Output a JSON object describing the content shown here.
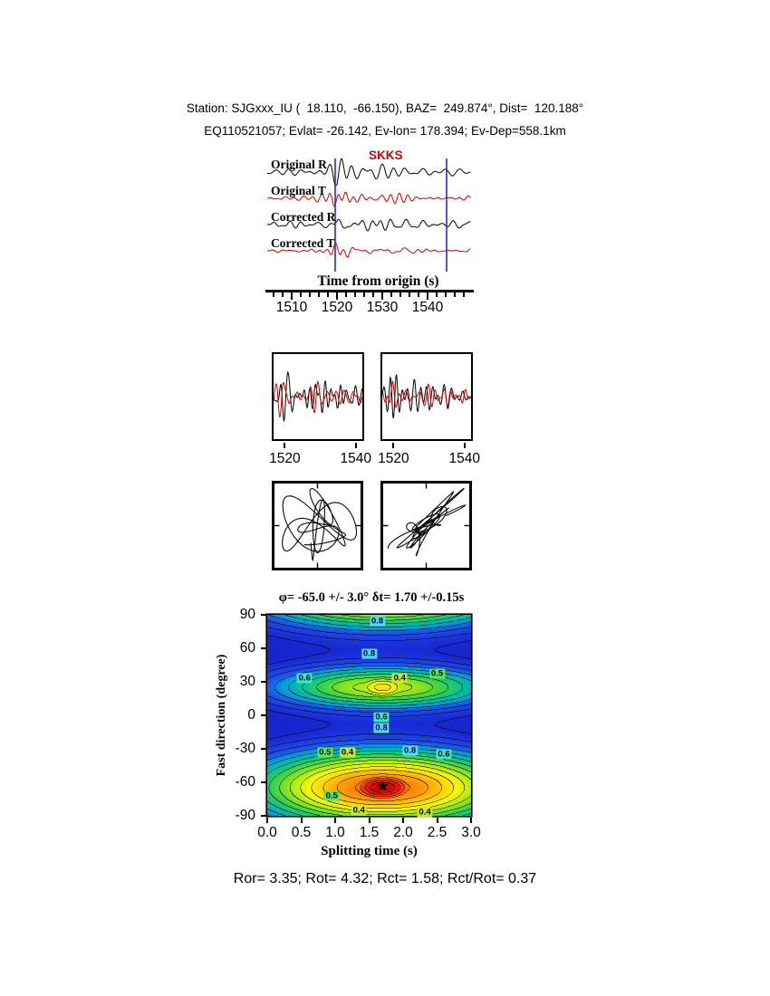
{
  "header": {
    "line1": "Station: SJGxxx_IU (  18.110,  -66.150), BAZ=  249.874°, Dist=  120.188°",
    "line2": "EQ110521057; Evlat= -26.142, Ev-lon= 178.394; Ev-Dep=558.1km"
  },
  "seismograms": {
    "phase_label": "SKKS",
    "phase_color": "#d40000",
    "traces": [
      {
        "label": "Original R",
        "color": "#000000"
      },
      {
        "label": "Original T",
        "color": "#d40000"
      },
      {
        "label": "Corrected R",
        "color": "#000000"
      },
      {
        "label": "Corrected T",
        "color": "#d40000"
      }
    ],
    "axis": {
      "label": "Time from origin (s)",
      "ticks": [
        1510,
        1520,
        1530,
        1540
      ],
      "xlim": [
        1504.6,
        1549.6
      ],
      "minor_step": 2
    },
    "window_lines": {
      "color": "#2233bb",
      "times": [
        1519.6,
        1544.2
      ]
    }
  },
  "zoom_panels": {
    "xlim": [
      1517,
      1542
    ],
    "ticks": [
      1520,
      1540
    ],
    "panels": [
      {
        "name": "original"
      },
      {
        "name": "corrected"
      }
    ]
  },
  "particle_panels": [
    {
      "name": "original-particle-motion"
    },
    {
      "name": "corrected-particle-motion"
    }
  ],
  "contour": {
    "title": "φ= -65.0 +/- 3.0° δt= 1.70 +/-0.15s",
    "xlabel": "Splitting time (s)",
    "ylabel": "Fast direction (degree)",
    "xticks": [
      "0.0",
      "0.5",
      "1.0",
      "1.5",
      "2.0",
      "2.5",
      "3.0"
    ],
    "yticks": [
      90,
      60,
      30,
      0,
      -30,
      -60,
      -90
    ],
    "xlim": [
      0,
      3
    ],
    "ylim": [
      -90,
      90
    ],
    "best_fit": {
      "dt": 1.7,
      "phi": -65.0,
      "marker": "star"
    },
    "labels": [
      {
        "t": 1.62,
        "phi": 84,
        "v": "0.8"
      },
      {
        "t": 1.5,
        "phi": 55,
        "v": "0.8"
      },
      {
        "t": 0.55,
        "phi": 33,
        "v": "0.6"
      },
      {
        "t": 1.95,
        "phi": 33,
        "v": "0.4"
      },
      {
        "t": 2.5,
        "phi": 37,
        "v": "0.5"
      },
      {
        "t": 1.68,
        "phi": -2,
        "v": "0.6"
      },
      {
        "t": 1.68,
        "phi": -11,
        "v": "0.8"
      },
      {
        "t": 0.85,
        "phi": -33,
        "v": "0.5"
      },
      {
        "t": 1.18,
        "phi": -33,
        "v": "0.4"
      },
      {
        "t": 2.1,
        "phi": -32,
        "v": "0.8"
      },
      {
        "t": 2.6,
        "phi": -35,
        "v": "0.6"
      },
      {
        "t": 0.95,
        "phi": -72,
        "v": "0.5"
      },
      {
        "t": 1.35,
        "phi": -85,
        "v": "0.4"
      },
      {
        "t": 2.32,
        "phi": -87,
        "v": "0.4"
      }
    ],
    "label_colors": {
      "0.8": "#55d8ff",
      "0.6": "#3ae8c8",
      "0.5": "#58e858",
      "0.4": "#c8e830",
      "0.3": "#ffa030"
    }
  },
  "footer": "Ror= 3.35; Rot= 4.32; Rct= 1.58; Rct/Rot= 0.37",
  "chart_data": [
    {
      "type": "line",
      "title": "Radial/transverse seismograms before and after splitting correction",
      "series": [
        {
          "name": "Original R"
        },
        {
          "name": "Original T"
        },
        {
          "name": "Corrected R"
        },
        {
          "name": "Corrected T"
        }
      ],
      "phase": "SKKS",
      "xlabel": "Time from origin (s)",
      "xlim": [
        1504.6,
        1549.6
      ],
      "xticks": [
        1510,
        1520,
        1530,
        1540
      ],
      "analysis_window_s": [
        1519.6,
        1544.2
      ]
    },
    {
      "type": "line",
      "title": "Windowed waveform comparison (left original, right corrected)",
      "xticks": [
        1520,
        1540
      ],
      "xlim": [
        1517,
        1542
      ]
    },
    {
      "type": "scatter",
      "title": "Particle motion hodograms (left original elliptical, right corrected linearized)"
    },
    {
      "type": "heatmap",
      "title": "Splitting misfit (energy) surface",
      "xlabel": "Splitting time (s)",
      "ylabel": "Fast direction (degree)",
      "xlim": [
        0,
        3
      ],
      "ylim": [
        -90,
        90
      ],
      "xticks": [
        0.0,
        0.5,
        1.0,
        1.5,
        2.0,
        2.5,
        3.0
      ],
      "yticks": [
        90,
        60,
        30,
        0,
        -30,
        -60,
        -90
      ],
      "best": {
        "phi_deg": -65.0,
        "phi_err_deg": 3.0,
        "dt_s": 1.7,
        "dt_err_s": 0.15
      },
      "secondary_minimum": {
        "phi_deg": 25,
        "dt_s": 1.7,
        "approx_level": 0.35
      },
      "contour_levels_labeled": [
        0.3,
        0.4,
        0.5,
        0.6,
        0.8
      ],
      "colormap": "red(min) -> orange -> yellow -> green -> blue(max)"
    },
    {
      "type": "table",
      "title": "Quality ratios",
      "values": {
        "Ror": 3.35,
        "Rot": 4.32,
        "Rct": 1.58,
        "Rct/Rot": 0.37
      }
    }
  ]
}
